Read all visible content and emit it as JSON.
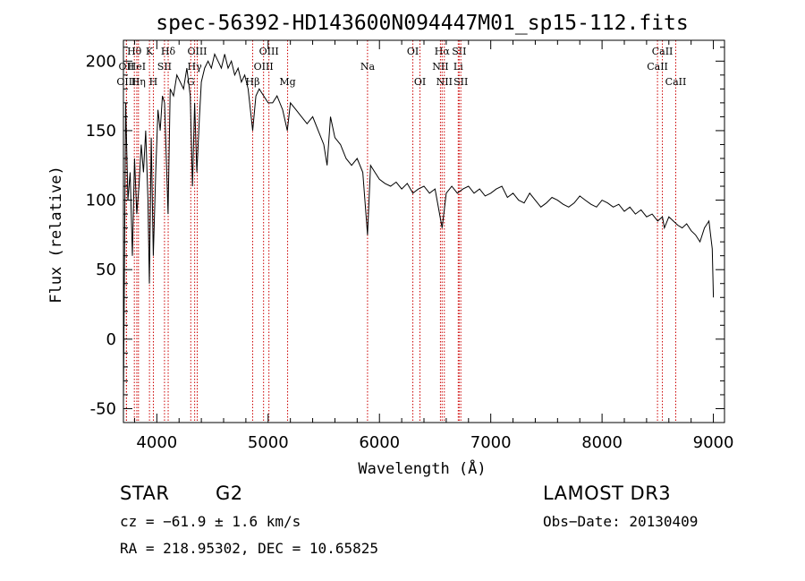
{
  "chart_data": {
    "type": "line",
    "title": "spec-56392-HD143600N094447M01_sp15-112.fits",
    "xlabel": "Wavelength (Å)",
    "ylabel": "Flux (relative)",
    "xlim": [
      3700,
      9100
    ],
    "ylim": [
      -60,
      215
    ],
    "xticks": [
      4000,
      5000,
      6000,
      7000,
      8000,
      9000
    ],
    "yticks": [
      -50,
      0,
      50,
      100,
      150,
      200
    ],
    "grid": false,
    "line_color": "#000000",
    "marker_color": "#cc0000",
    "spectrum": {
      "name": "flux",
      "x": [
        3700,
        3720,
        3740,
        3760,
        3780,
        3800,
        3820,
        3840,
        3860,
        3880,
        3900,
        3920,
        3933,
        3950,
        3968,
        3990,
        4010,
        4030,
        4050,
        4070,
        4101,
        4120,
        4150,
        4180,
        4210,
        4240,
        4270,
        4300,
        4320,
        4340,
        4360,
        4383,
        4400,
        4430,
        4460,
        4490,
        4520,
        4550,
        4580,
        4610,
        4640,
        4670,
        4700,
        4730,
        4760,
        4790,
        4820,
        4861,
        4890,
        4920,
        4960,
        5000,
        5040,
        5080,
        5130,
        5172,
        5200,
        5250,
        5300,
        5350,
        5400,
        5450,
        5500,
        5530,
        5560,
        5600,
        5650,
        5700,
        5750,
        5800,
        5850,
        5893,
        5920,
        5960,
        6000,
        6050,
        6100,
        6150,
        6200,
        6250,
        6300,
        6350,
        6400,
        6450,
        6500,
        6563,
        6600,
        6650,
        6700,
        6750,
        6800,
        6850,
        6900,
        6950,
        7000,
        7050,
        7100,
        7150,
        7200,
        7250,
        7300,
        7350,
        7400,
        7450,
        7500,
        7550,
        7600,
        7650,
        7700,
        7750,
        7800,
        7850,
        7900,
        7950,
        8000,
        8050,
        8100,
        8150,
        8200,
        8250,
        8300,
        8350,
        8400,
        8450,
        8500,
        8542,
        8560,
        8600,
        8640,
        8680,
        8720,
        8760,
        8800,
        8840,
        8880,
        8920,
        8960,
        8990,
        9000
      ],
      "y": [
        -45,
        170,
        100,
        120,
        60,
        130,
        90,
        110,
        140,
        120,
        150,
        100,
        40,
        145,
        60,
        120,
        165,
        150,
        175,
        170,
        90,
        180,
        175,
        190,
        185,
        180,
        195,
        175,
        110,
        170,
        120,
        160,
        185,
        195,
        200,
        195,
        205,
        200,
        195,
        205,
        195,
        200,
        190,
        195,
        185,
        190,
        180,
        150,
        175,
        180,
        175,
        170,
        170,
        175,
        165,
        150,
        170,
        165,
        160,
        155,
        160,
        150,
        140,
        125,
        160,
        145,
        140,
        130,
        125,
        130,
        120,
        75,
        125,
        120,
        115,
        112,
        110,
        113,
        108,
        112,
        105,
        108,
        110,
        105,
        108,
        80,
        105,
        110,
        105,
        108,
        110,
        105,
        108,
        103,
        105,
        108,
        110,
        102,
        105,
        100,
        98,
        105,
        100,
        95,
        98,
        102,
        100,
        97,
        95,
        98,
        103,
        100,
        97,
        95,
        100,
        98,
        95,
        97,
        92,
        95,
        90,
        93,
        88,
        90,
        85,
        88,
        80,
        88,
        85,
        82,
        80,
        83,
        78,
        75,
        70,
        80,
        85,
        65,
        30
      ]
    },
    "line_markers": [
      {
        "label": "Hθ",
        "x": 3798,
        "row": 1
      },
      {
        "label": "OII",
        "x": 3727,
        "row": 2
      },
      {
        "label": "HeI",
        "x": 3820,
        "row": 2
      },
      {
        "label": "OIII",
        "x": 3727,
        "row": 3
      },
      {
        "label": "Hη",
        "x": 3835,
        "row": 3
      },
      {
        "label": "K",
        "x": 3934,
        "row": 1
      },
      {
        "label": "SII",
        "x": 4069,
        "row": 2
      },
      {
        "label": "H",
        "x": 3969,
        "row": 3
      },
      {
        "label": "Hδ",
        "x": 4102,
        "row": 1
      },
      {
        "label": "OIII",
        "x": 4363,
        "row": 1
      },
      {
        "label": "Hγ",
        "x": 4340,
        "row": 2
      },
      {
        "label": "G",
        "x": 4305,
        "row": 3
      },
      {
        "label": "Hβ",
        "x": 4861,
        "row": 3
      },
      {
        "label": "OIII",
        "x": 5007,
        "row": 1
      },
      {
        "label": "OIII",
        "x": 4959,
        "row": 2
      },
      {
        "label": "Mg",
        "x": 5175,
        "row": 3
      },
      {
        "label": "Na",
        "x": 5893,
        "row": 2
      },
      {
        "label": "OI",
        "x": 6300,
        "row": 1
      },
      {
        "label": "OI",
        "x": 6364,
        "row": 3
      },
      {
        "label": "Hα",
        "x": 6563,
        "row": 1
      },
      {
        "label": "NII",
        "x": 6548,
        "row": 2
      },
      {
        "label": "NII",
        "x": 6583,
        "row": 3
      },
      {
        "label": "SII",
        "x": 6716,
        "row": 1
      },
      {
        "label": "Li",
        "x": 6708,
        "row": 2
      },
      {
        "label": "SII",
        "x": 6731,
        "row": 3
      },
      {
        "label": "CaII",
        "x": 8542,
        "row": 1
      },
      {
        "label": "CaII",
        "x": 8498,
        "row": 2
      },
      {
        "label": "CaII",
        "x": 8662,
        "row": 3
      }
    ]
  },
  "info": {
    "object_class": "STAR",
    "subclass": "G2",
    "cz": "cz = −61.9 ± 1.6 km/s",
    "coords": "RA = 218.95302, DEC =  10.65825",
    "survey": "LAMOST DR3",
    "obs_date": "Obs−Date: 20130409"
  }
}
